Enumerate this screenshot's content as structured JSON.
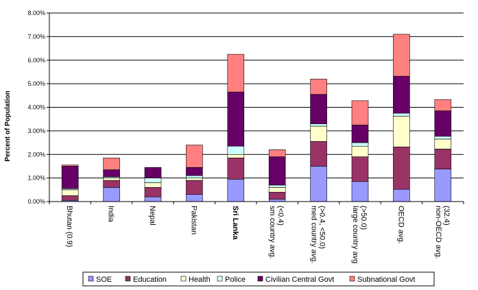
{
  "chart_data": {
    "type": "bar",
    "stacked": true,
    "ylabel": "Percent of Population",
    "yticks": [
      "0.00%",
      "1.00%",
      "2.00%",
      "3.00%",
      "4.00%",
      "5.00%",
      "6.00%",
      "7.00%",
      "8.00%"
    ],
    "ylim": [
      0,
      8
    ],
    "grid": true,
    "legend_position": "bottom",
    "categories": [
      {
        "lines": [
          "Bhutan (0.9)"
        ],
        "bold": false
      },
      {
        "lines": [
          "India"
        ],
        "bold": false
      },
      {
        "lines": [
          "Nepal"
        ],
        "bold": false
      },
      {
        "lines": [
          "Pakistan"
        ],
        "bold": false
      },
      {
        "lines": [
          "Sri Lanka"
        ],
        "bold": true
      },
      {
        "lines": [
          "sm country avg.",
          "(<0.4)"
        ],
        "bold": false
      },
      {
        "lines": [
          "med country avg.",
          "(>0.4, <50.0)"
        ],
        "bold": false
      },
      {
        "lines": [
          "large country avg",
          "(>50.0)"
        ],
        "bold": false
      },
      {
        "lines": [
          "OECD avg."
        ],
        "bold": false
      },
      {
        "lines": [
          "non-OECD avg.",
          "(32.4)"
        ],
        "bold": false
      }
    ],
    "series": [
      {
        "name": "SOE",
        "color": "#9999ff",
        "values": [
          0.05,
          0.6,
          0.2,
          0.3,
          0.95,
          0.1,
          1.5,
          0.85,
          0.52,
          1.38
        ]
      },
      {
        "name": "Education",
        "color": "#993366",
        "values": [
          0.2,
          0.3,
          0.4,
          0.6,
          0.9,
          0.3,
          1.05,
          1.05,
          1.8,
          0.85
        ]
      },
      {
        "name": "Health",
        "color": "#ffffcc",
        "values": [
          0.25,
          0.1,
          0.2,
          0.1,
          0.15,
          0.2,
          0.65,
          0.45,
          1.3,
          0.42
        ]
      },
      {
        "name": "Police",
        "color": "#ccffff",
        "values": [
          0.05,
          0.05,
          0.2,
          0.1,
          0.35,
          0.1,
          0.1,
          0.15,
          0.13,
          0.12
        ]
      },
      {
        "name": "Civilian Central Govt",
        "color": "#660066",
        "values": [
          0.95,
          0.3,
          0.45,
          0.35,
          2.3,
          1.2,
          1.25,
          0.75,
          1.57,
          1.08
        ]
      },
      {
        "name": "Subnational Govt",
        "color": "#ff8080",
        "values": [
          0.05,
          0.5,
          0.0,
          0.95,
          1.6,
          0.3,
          0.65,
          1.03,
          1.78,
          0.48
        ]
      }
    ]
  }
}
